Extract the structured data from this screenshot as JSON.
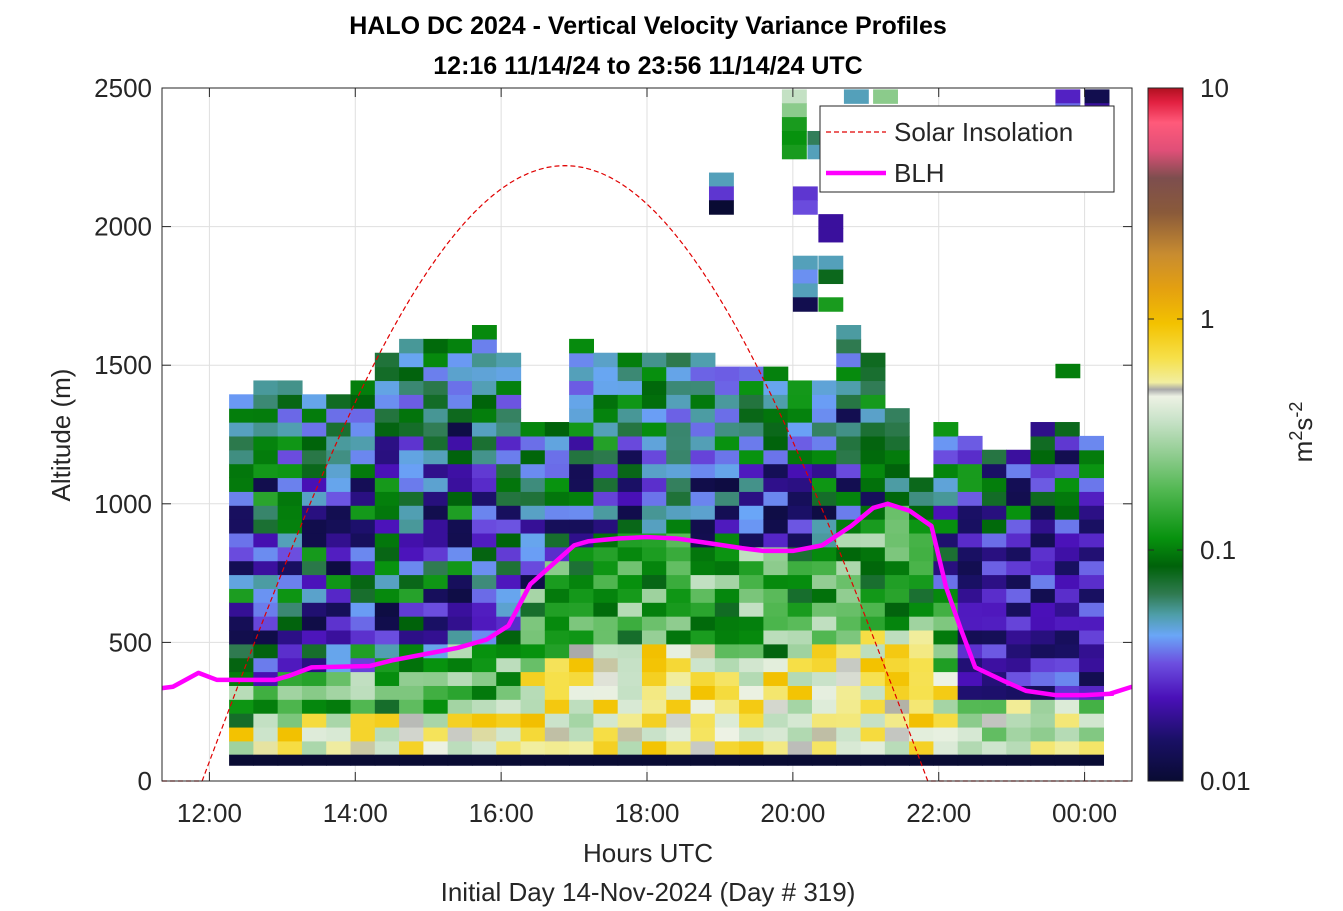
{
  "chart_data": {
    "type": "heatmap",
    "title_lines": [
      "HALO DC 2024 - Vertical Velocity Variance Profiles",
      "12:16 11/14/24 to 23:56 11/14/24  UTC"
    ],
    "xlabel": "Hours UTC",
    "footer": "Initial Day 14-Nov-2024 (Day # 319)",
    "ylabel": "Altitude (m)",
    "colorbar_label": "m^2s^-2",
    "x_ticks": [
      "12:00",
      "14:00",
      "16:00",
      "18:00",
      "20:00",
      "22:00",
      "00:00"
    ],
    "x_tick_hours": [
      12,
      14,
      16,
      18,
      20,
      22,
      24
    ],
    "xlim_hours": [
      11.35,
      24.65
    ],
    "y_ticks": [
      "0",
      "500",
      "1000",
      "1500",
      "2000",
      "2500"
    ],
    "ylim": [
      0,
      2500
    ],
    "colorbar_ticks": [
      "0.01",
      "0.1",
      "1",
      "10"
    ],
    "colorbar_range": [
      0.01,
      10
    ],
    "colorbar_scale": "log",
    "legend": {
      "placement": "top-right",
      "entries": [
        {
          "label": "Solar Insolation",
          "style": "dashed",
          "color": "#e00000"
        },
        {
          "label": "BLH",
          "style": "solid",
          "color": "#ff00ff"
        }
      ]
    },
    "grid": true,
    "heatmap": {
      "t_start_hour": 12.27,
      "t_step_hours": 0.333,
      "z_start_m": 120,
      "z_step_m": 50,
      "n_times": 36,
      "n_levels": 48
    },
    "series": [
      {
        "name": "BLH",
        "x_hours": [
          11.35,
          11.5,
          11.85,
          12.1,
          12.9,
          13.1,
          13.4,
          14.2,
          14.5,
          15.0,
          15.4,
          15.8,
          16.1,
          16.4,
          16.7,
          17.0,
          17.2,
          17.6,
          18.0,
          18.4,
          18.8,
          19.3,
          19.6,
          20.0,
          20.4,
          20.8,
          21.1,
          21.3,
          21.6,
          21.9,
          22.1,
          22.3,
          22.5,
          22.9,
          23.2,
          23.6,
          24.0,
          24.4
        ],
        "y": [
          335,
          340,
          390,
          365,
          365,
          380,
          410,
          415,
          435,
          460,
          480,
          510,
          560,
          710,
          780,
          850,
          865,
          875,
          880,
          875,
          860,
          840,
          830,
          830,
          850,
          920,
          985,
          1000,
          975,
          920,
          700,
          550,
          410,
          360,
          325,
          310,
          310,
          315
        ]
      },
      {
        "name": "BLH",
        "x_hours": [
          24.35,
          24.65
        ],
        "y": [
          315,
          340
        ]
      },
      {
        "name": "Solar Insolation",
        "sunrise_hour": 11.9,
        "sunset_hour": 21.85,
        "peak_altitude_axis": 2220
      }
    ]
  }
}
